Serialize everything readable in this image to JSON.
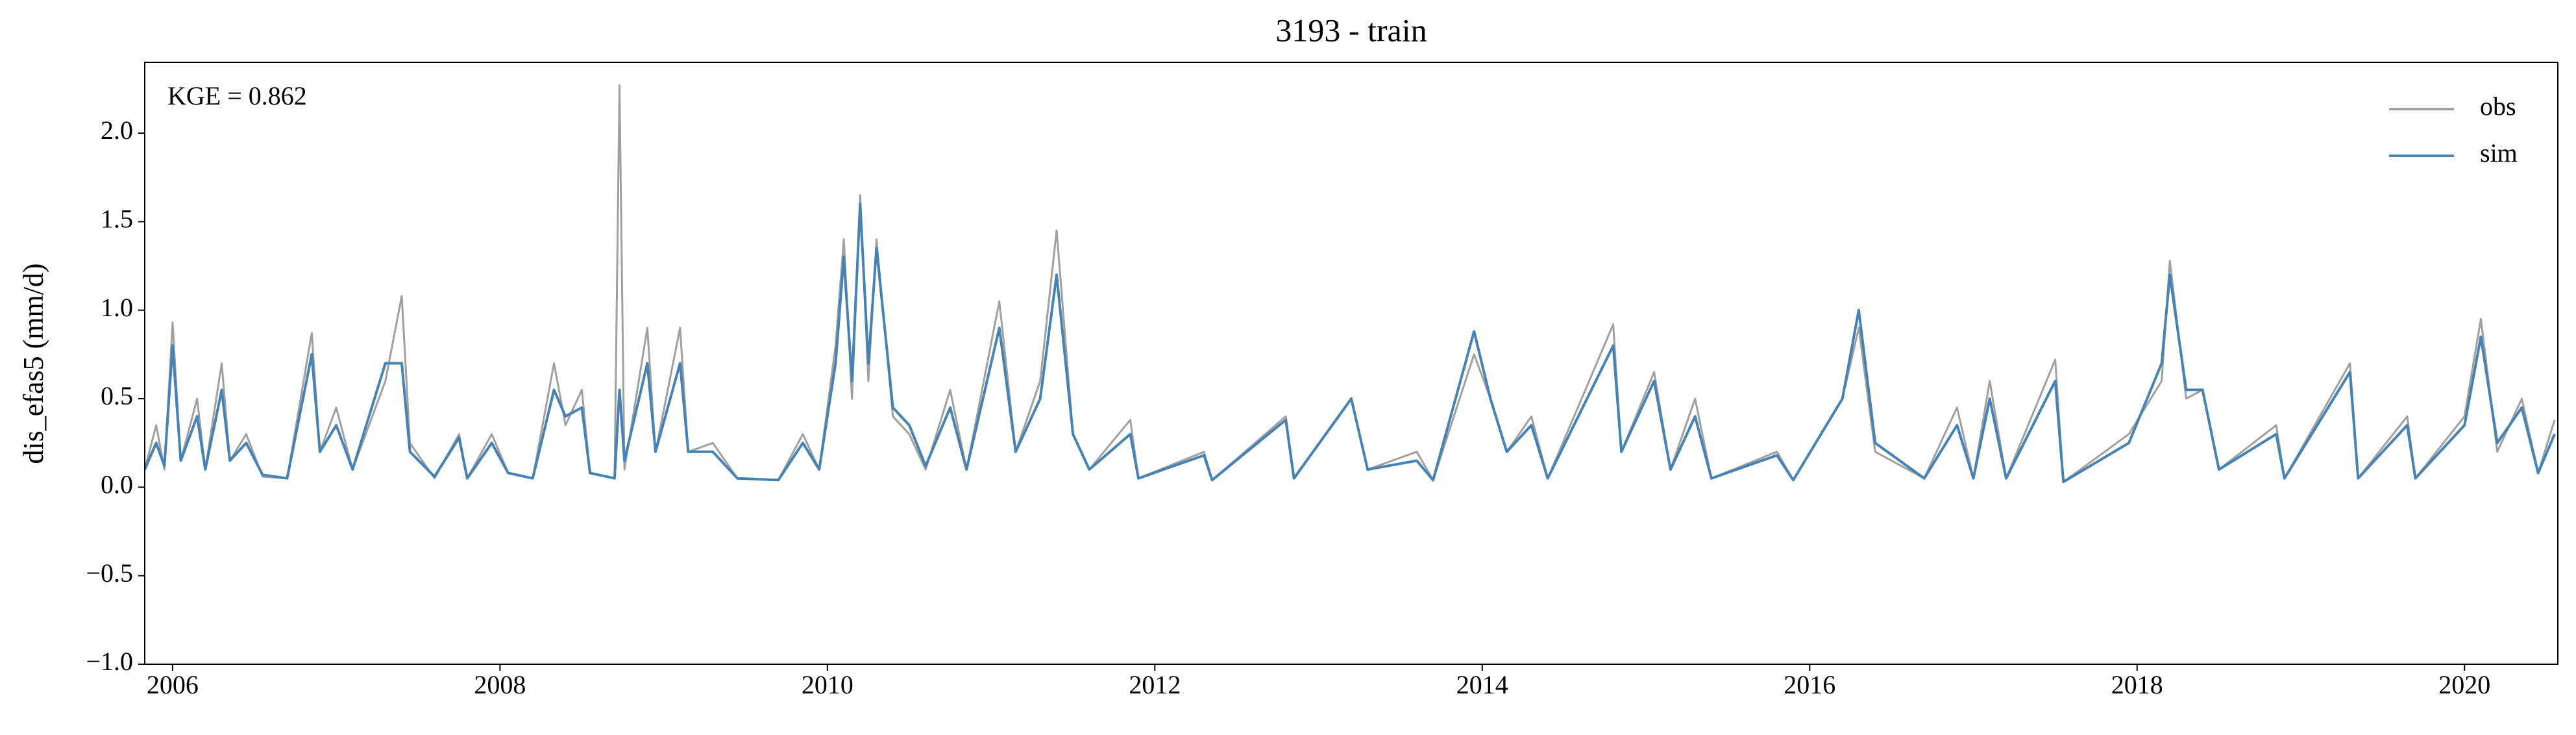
{
  "chart_data": {
    "type": "line",
    "title": "3193 - train",
    "ylabel": "dis_efas5 (mm/d)",
    "annotation": "KGE = 0.862",
    "legend": "upper right",
    "grid": false,
    "xlim": [
      2005.83,
      2020.57
    ],
    "xticks": [
      2006,
      2008,
      2010,
      2012,
      2014,
      2016,
      2018,
      2020
    ],
    "ylim": [
      -1,
      2.4
    ],
    "yticks": [
      {
        "value": -1,
        "label": "−1.0"
      },
      {
        "value": -0.5,
        "label": "−0.5"
      },
      {
        "value": 0,
        "label": "0.0"
      },
      {
        "value": 0.5,
        "label": "0.5"
      },
      {
        "value": 1,
        "label": "1.0"
      },
      {
        "value": 1.5,
        "label": "1.5"
      },
      {
        "value": 2,
        "label": "2.0"
      }
    ],
    "x": [
      2005.83,
      2005.9,
      2005.95,
      2006.0,
      2006.05,
      2006.15,
      2006.2,
      2006.3,
      2006.35,
      2006.45,
      2006.55,
      2006.7,
      2006.85,
      2006.9,
      2007.0,
      2007.1,
      2007.3,
      2007.4,
      2007.45,
      2007.6,
      2007.75,
      2007.8,
      2007.95,
      2008.05,
      2008.2,
      2008.33,
      2008.4,
      2008.5,
      2008.55,
      2008.7,
      2008.73,
      2008.76,
      2008.9,
      2008.95,
      2009.1,
      2009.15,
      2009.3,
      2009.45,
      2009.7,
      2009.85,
      2009.95,
      2010.05,
      2010.1,
      2010.15,
      2010.2,
      2010.25,
      2010.3,
      2010.4,
      2010.5,
      2010.6,
      2010.75,
      2010.85,
      2011.05,
      2011.15,
      2011.3,
      2011.4,
      2011.5,
      2011.6,
      2011.85,
      2011.9,
      2012.3,
      2012.35,
      2012.8,
      2012.85,
      2013.2,
      2013.3,
      2013.6,
      2013.7,
      2013.95,
      2014.05,
      2014.15,
      2014.3,
      2014.4,
      2014.8,
      2014.85,
      2015.05,
      2015.15,
      2015.3,
      2015.4,
      2015.8,
      2015.9,
      2016.2,
      2016.3,
      2016.4,
      2016.7,
      2016.9,
      2017.0,
      2017.1,
      2017.2,
      2017.5,
      2017.55,
      2017.95,
      2018.15,
      2018.2,
      2018.3,
      2018.4,
      2018.5,
      2018.85,
      2018.9,
      2019.3,
      2019.35,
      2019.65,
      2019.7,
      2020.0,
      2020.1,
      2020.2,
      2020.35,
      2020.45,
      2020.55
    ],
    "series": [
      {
        "name": "obs",
        "color": "#a0a0a0",
        "values": [
          0.1,
          0.35,
          0.1,
          0.93,
          0.15,
          0.5,
          0.1,
          0.7,
          0.15,
          0.3,
          0.06,
          0.05,
          0.87,
          0.2,
          0.45,
          0.1,
          0.6,
          1.08,
          0.25,
          0.05,
          0.3,
          0.05,
          0.3,
          0.08,
          0.05,
          0.7,
          0.35,
          0.55,
          0.08,
          0.05,
          2.27,
          0.1,
          0.9,
          0.2,
          0.9,
          0.2,
          0.25,
          0.05,
          0.04,
          0.3,
          0.1,
          0.8,
          1.4,
          0.5,
          1.65,
          0.6,
          1.4,
          0.4,
          0.3,
          0.1,
          0.55,
          0.1,
          1.05,
          0.2,
          0.6,
          1.45,
          0.3,
          0.1,
          0.38,
          0.05,
          0.2,
          0.04,
          0.4,
          0.05,
          0.5,
          0.1,
          0.2,
          0.04,
          0.75,
          0.5,
          0.2,
          0.4,
          0.05,
          0.92,
          0.2,
          0.65,
          0.1,
          0.5,
          0.05,
          0.2,
          0.04,
          0.5,
          0.9,
          0.2,
          0.05,
          0.45,
          0.05,
          0.6,
          0.05,
          0.72,
          0.03,
          0.3,
          0.6,
          1.28,
          0.5,
          0.55,
          0.1,
          0.35,
          0.05,
          0.7,
          0.05,
          0.4,
          0.05,
          0.4,
          0.95,
          0.2,
          0.5,
          0.08,
          0.38
        ]
      },
      {
        "name": "sim",
        "color": "#4682b4",
        "values": [
          0.1,
          0.25,
          0.12,
          0.8,
          0.15,
          0.4,
          0.1,
          0.55,
          0.15,
          0.25,
          0.07,
          0.05,
          0.75,
          0.2,
          0.35,
          0.1,
          0.7,
          0.7,
          0.2,
          0.06,
          0.28,
          0.05,
          0.25,
          0.08,
          0.05,
          0.55,
          0.4,
          0.45,
          0.08,
          0.05,
          0.55,
          0.15,
          0.7,
          0.2,
          0.7,
          0.2,
          0.2,
          0.05,
          0.04,
          0.25,
          0.1,
          0.7,
          1.3,
          0.6,
          1.6,
          0.7,
          1.35,
          0.45,
          0.35,
          0.12,
          0.45,
          0.1,
          0.9,
          0.2,
          0.5,
          1.2,
          0.3,
          0.1,
          0.3,
          0.05,
          0.18,
          0.04,
          0.38,
          0.05,
          0.5,
          0.1,
          0.15,
          0.04,
          0.88,
          0.5,
          0.2,
          0.35,
          0.05,
          0.8,
          0.2,
          0.6,
          0.1,
          0.4,
          0.05,
          0.18,
          0.04,
          0.5,
          1.0,
          0.25,
          0.05,
          0.35,
          0.05,
          0.5,
          0.05,
          0.6,
          0.03,
          0.25,
          0.7,
          1.2,
          0.55,
          0.55,
          0.1,
          0.3,
          0.05,
          0.65,
          0.05,
          0.35,
          0.05,
          0.35,
          0.85,
          0.25,
          0.45,
          0.08,
          0.3
        ]
      }
    ]
  }
}
